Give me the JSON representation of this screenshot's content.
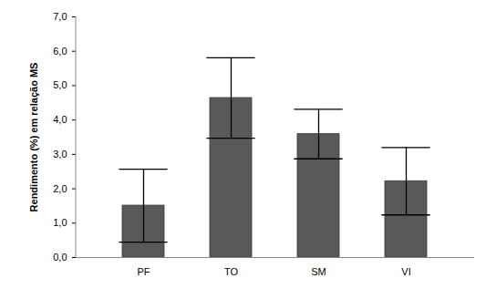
{
  "chart_data": {
    "type": "bar",
    "y_label": "Rendimento (%) em relação MS",
    "categories": [
      "PF",
      "TO",
      "SM",
      "VI"
    ],
    "values": [
      1.51,
      4.64,
      3.59,
      2.22
    ],
    "errors": [
      1.06,
      1.17,
      0.72,
      0.98
    ],
    "color": "#595959",
    "ylim": [
      0,
      7
    ],
    "yticks": [
      {
        "value": 0,
        "label": "0,0"
      },
      {
        "value": 1,
        "label": "1,0"
      },
      {
        "value": 2,
        "label": "2,0"
      },
      {
        "value": 3,
        "label": "3,0"
      },
      {
        "value": 4,
        "label": "4,0"
      },
      {
        "value": 5,
        "label": "5,0"
      },
      {
        "value": 6,
        "label": "6,0"
      },
      {
        "value": 7,
        "label": "7,0"
      }
    ],
    "grid": false
  }
}
